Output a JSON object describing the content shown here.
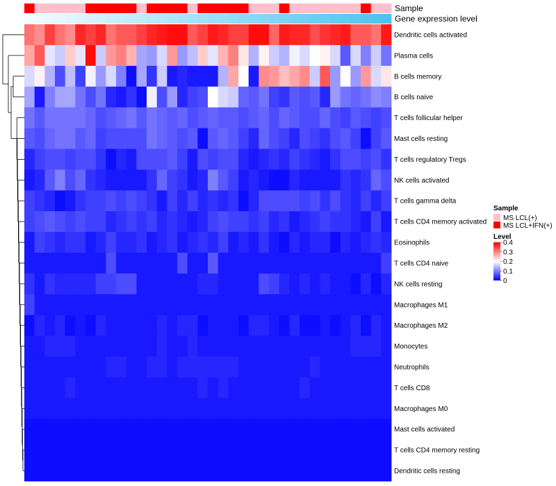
{
  "colors": {
    "low": "#0000ff",
    "mid": "#ffffff",
    "high": "#ff0000",
    "sample_lcl": "#ffc0cb",
    "sample_ifn": "#ff0000",
    "gene_low": "#f5fbff",
    "gene_high": "#4cc3ef",
    "dendrogram": "#000000"
  },
  "chart_data": {
    "type": "heatmap",
    "annotation_labels": [
      "Sample",
      "Gene expression level"
    ],
    "sample_annotation": [
      1,
      0,
      0,
      0,
      0,
      0,
      1,
      1,
      1,
      1,
      1,
      0,
      1,
      1,
      1,
      1,
      0,
      1,
      1,
      1,
      1,
      1,
      0,
      0,
      0,
      1,
      0,
      0,
      0,
      0,
      0,
      0,
      0,
      1,
      0,
      0
    ],
    "gene_expression_level": {
      "min": 0,
      "max": 1,
      "direction": "increasing"
    },
    "rows": [
      "Dendritic cells activated",
      "Plasma cells",
      "B cells memory",
      "B cells naive",
      "T cells follicular helper",
      "Mast cells resting",
      "T cells regulatory  Tregs",
      "NK cells activated",
      "T cells gamma delta",
      "T cells CD4 memory activated",
      "Eosinophils",
      "T cells CD4 naive",
      "NK cells resting",
      "Macrophages M1",
      "Macrophages M2",
      "Monocytes",
      "Neutrophils",
      "T cells CD8",
      "Macrophages M0",
      "Mast cells activated",
      "T cells CD4 memory resting",
      "Dendritic cells resting"
    ],
    "values": [
      [
        0.31,
        0.29,
        0.35,
        0.31,
        0.29,
        0.37,
        0.35,
        0.37,
        0.31,
        0.33,
        0.33,
        0.35,
        0.37,
        0.38,
        0.39,
        0.39,
        0.33,
        0.35,
        0.38,
        0.37,
        0.35,
        0.35,
        0.39,
        0.39,
        0.32,
        0.38,
        0.37,
        0.37,
        0.34,
        0.36,
        0.37,
        0.38,
        0.33,
        0.33,
        0.31,
        0.38
      ],
      [
        0.27,
        0.33,
        0.18,
        0.16,
        0.24,
        0.18,
        0.39,
        0.16,
        0.28,
        0.3,
        0.26,
        0.13,
        0.12,
        0.17,
        0.28,
        0.12,
        0.15,
        0.24,
        0.18,
        0.26,
        0.3,
        0.22,
        0.14,
        0.21,
        0.16,
        0.14,
        0.19,
        0.17,
        0.2,
        0.21,
        0.17,
        0.07,
        0.17,
        0.1,
        0.16,
        0.09
      ],
      [
        0.17,
        0.21,
        0.14,
        0.06,
        0.15,
        0.05,
        0.19,
        0.12,
        0.17,
        0.1,
        0.01,
        0.13,
        0.04,
        0.16,
        0.02,
        0.03,
        0.02,
        0.02,
        0.02,
        0.14,
        0.27,
        0.2,
        0.02,
        0.29,
        0.28,
        0.25,
        0.27,
        0.29,
        0.16,
        0.33,
        0.12,
        0.2,
        0.12,
        0.28,
        0.17,
        0.22
      ],
      [
        0.13,
        0.02,
        0.1,
        0.13,
        0.13,
        0.09,
        0.06,
        0.09,
        0.03,
        0.02,
        0.04,
        0.01,
        0.19,
        0.06,
        0.12,
        0.03,
        0.05,
        0.06,
        0.2,
        0.17,
        0.16,
        0.08,
        0.07,
        0.09,
        0.05,
        0.04,
        0.07,
        0.06,
        0.07,
        0.03,
        0.12,
        0.09,
        0.08,
        0.09,
        0.11,
        0.1
      ],
      [
        0.09,
        0.07,
        0.09,
        0.09,
        0.09,
        0.09,
        0.08,
        0.06,
        0.07,
        0.08,
        0.09,
        0.07,
        0.09,
        0.08,
        0.07,
        0.08,
        0.06,
        0.07,
        0.08,
        0.07,
        0.07,
        0.06,
        0.07,
        0.08,
        0.06,
        0.08,
        0.07,
        0.06,
        0.06,
        0.08,
        0.06,
        0.05,
        0.07,
        0.06,
        0.05,
        0.06
      ],
      [
        0.07,
        0.06,
        0.08,
        0.09,
        0.09,
        0.07,
        0.08,
        0.05,
        0.06,
        0.06,
        0.06,
        0.06,
        0.09,
        0.08,
        0.07,
        0.06,
        0.07,
        0.01,
        0.07,
        0.08,
        0.07,
        0.05,
        0.03,
        0.08,
        0.06,
        0.05,
        0.03,
        0.06,
        0.05,
        0.04,
        0.06,
        0.07,
        0.05,
        0.01,
        0.05,
        0.07
      ],
      [
        0.03,
        0.05,
        0.06,
        0.06,
        0.05,
        0.06,
        0.06,
        0.04,
        0.01,
        0.03,
        0.02,
        0.06,
        0.06,
        0.06,
        0.07,
        0.05,
        0.02,
        0.06,
        0.05,
        0.06,
        0.06,
        0.03,
        0.02,
        0.03,
        0.04,
        0.03,
        0.05,
        0.04,
        0.03,
        0.02,
        0.04,
        0.06,
        0.06,
        0.05,
        0.06,
        0.04
      ],
      [
        0.02,
        0.03,
        0.07,
        0.1,
        0.06,
        0.08,
        0.04,
        0.03,
        0.02,
        0.02,
        0.02,
        0.02,
        0.04,
        0.08,
        0.05,
        0.04,
        0.02,
        0.03,
        0.1,
        0.07,
        0.05,
        0.02,
        0.03,
        0.02,
        0.01,
        0.01,
        0.03,
        0.02,
        0.02,
        0.02,
        0.02,
        0.04,
        0.03,
        0.04,
        0.08,
        0.06
      ],
      [
        0.05,
        0.04,
        0.03,
        0.01,
        0.02,
        0.04,
        0.05,
        0.05,
        0.06,
        0.05,
        0.06,
        0.05,
        0.04,
        0.02,
        0.05,
        0.03,
        0.05,
        0.03,
        0.04,
        0.03,
        0.04,
        0.01,
        0.03,
        0.06,
        0.06,
        0.06,
        0.06,
        0.05,
        0.06,
        0.04,
        0.06,
        0.04,
        0.03,
        0.05,
        0.03,
        0.05
      ],
      [
        0.05,
        0.06,
        0.07,
        0.06,
        0.05,
        0.06,
        0.05,
        0.05,
        0.03,
        0.04,
        0.05,
        0.04,
        0.05,
        0.03,
        0.04,
        0.03,
        0.02,
        0.03,
        0.05,
        0.06,
        0.05,
        0.05,
        0.04,
        0.05,
        0.03,
        0.04,
        0.02,
        0.03,
        0.04,
        0.05,
        0.04,
        0.04,
        0.03,
        0.02,
        0.05,
        0.02
      ],
      [
        0.02,
        0.05,
        0.04,
        0.03,
        0.04,
        0.04,
        0.02,
        0.03,
        0.05,
        0.03,
        0.03,
        0.04,
        0.02,
        0.03,
        0.04,
        0.02,
        0.03,
        0.04,
        0.03,
        0.05,
        0.02,
        0.03,
        0.02,
        0.04,
        0.02,
        0.01,
        0.03,
        0.02,
        0.03,
        0.03,
        0.01,
        0.03,
        0.02,
        0.03,
        0.04,
        0.03
      ],
      [
        0.02,
        0.02,
        0.02,
        0.02,
        0.02,
        0.02,
        0.02,
        0.02,
        0.06,
        0.02,
        0.02,
        0.02,
        0.02,
        0.02,
        0.02,
        0.06,
        0.02,
        0.02,
        0.07,
        0.02,
        0.02,
        0.02,
        0.02,
        0.02,
        0.02,
        0.02,
        0.02,
        0.02,
        0.02,
        0.02,
        0.02,
        0.02,
        0.02,
        0.02,
        0.02,
        0.05
      ],
      [
        0.04,
        0.02,
        0.04,
        0.03,
        0.03,
        0.03,
        0.03,
        0.05,
        0.05,
        0.06,
        0.06,
        0.02,
        0.02,
        0.02,
        0.02,
        0.02,
        0.02,
        0.03,
        0.03,
        0.02,
        0.02,
        0.02,
        0.02,
        0.06,
        0.05,
        0.03,
        0.02,
        0.03,
        0.02,
        0.03,
        0.02,
        0.02,
        0.01,
        0.03,
        0.01,
        0.03
      ],
      [
        0.05,
        0.02,
        0.02,
        0.02,
        0.02,
        0.02,
        0.02,
        0.02,
        0.02,
        0.02,
        0.02,
        0.02,
        0.02,
        0.02,
        0.02,
        0.02,
        0.02,
        0.02,
        0.02,
        0.02,
        0.02,
        0.02,
        0.02,
        0.02,
        0.02,
        0.02,
        0.02,
        0.02,
        0.02,
        0.02,
        0.02,
        0.02,
        0.02,
        0.02,
        0.02,
        0.02
      ],
      [
        0.01,
        0.03,
        0.02,
        0.03,
        0.01,
        0.02,
        0.01,
        0.03,
        0.02,
        0.02,
        0.02,
        0.02,
        0.02,
        0.03,
        0.02,
        0.03,
        0.03,
        0.01,
        0.02,
        0.02,
        0.02,
        0.01,
        0.03,
        0.03,
        0.02,
        0.01,
        0.03,
        0.01,
        0.01,
        0.02,
        0.01,
        0.02,
        0.03,
        0.01,
        0.03,
        0.02
      ],
      [
        0.02,
        0.02,
        0.03,
        0.03,
        0.03,
        0.02,
        0.02,
        0.02,
        0.02,
        0.02,
        0.02,
        0.02,
        0.02,
        0.03,
        0.02,
        0.02,
        0.03,
        0.02,
        0.02,
        0.02,
        0.02,
        0.02,
        0.02,
        0.02,
        0.02,
        0.02,
        0.02,
        0.02,
        0.02,
        0.02,
        0.02,
        0.02,
        0.03,
        0.03,
        0.03,
        0.02
      ],
      [
        0.02,
        0.02,
        0.02,
        0.02,
        0.02,
        0.02,
        0.02,
        0.02,
        0.03,
        0.03,
        0.02,
        0.02,
        0.03,
        0.03,
        0.02,
        0.03,
        0.03,
        0.03,
        0.03,
        0.03,
        0.03,
        0.02,
        0.02,
        0.02,
        0.02,
        0.02,
        0.02,
        0.02,
        0.03,
        0.02,
        0.02,
        0.02,
        0.02,
        0.02,
        0.02,
        0.02
      ],
      [
        0.02,
        0.02,
        0.02,
        0.02,
        0.03,
        0.02,
        0.02,
        0.02,
        0.02,
        0.02,
        0.02,
        0.02,
        0.02,
        0.02,
        0.02,
        0.02,
        0.02,
        0.03,
        0.02,
        0.03,
        0.02,
        0.02,
        0.02,
        0.02,
        0.02,
        0.02,
        0.02,
        0.03,
        0.02,
        0.02,
        0.02,
        0.02,
        0.02,
        0.02,
        0.02,
        0.02
      ],
      [
        0.02,
        0.02,
        0.02,
        0.02,
        0.02,
        0.02,
        0.02,
        0.02,
        0.02,
        0.02,
        0.02,
        0.02,
        0.02,
        0.02,
        0.02,
        0.02,
        0.02,
        0.02,
        0.02,
        0.02,
        0.02,
        0.02,
        0.02,
        0.02,
        0.02,
        0.02,
        0.02,
        0.02,
        0.02,
        0.02,
        0.02,
        0.02,
        0.02,
        0.02,
        0.02,
        0.02
      ],
      [
        0.01,
        0.01,
        0.01,
        0.01,
        0.01,
        0.01,
        0.01,
        0.01,
        0.01,
        0.01,
        0.01,
        0.01,
        0.01,
        0.01,
        0.01,
        0.01,
        0.01,
        0.01,
        0.01,
        0.01,
        0.01,
        0.01,
        0.01,
        0.01,
        0.01,
        0.01,
        0.01,
        0.01,
        0.01,
        0.01,
        0.01,
        0.01,
        0.01,
        0.01,
        0.01,
        0.01
      ],
      [
        0.01,
        0.01,
        0.01,
        0.01,
        0.01,
        0.01,
        0.01,
        0.01,
        0.01,
        0.01,
        0.01,
        0.01,
        0.01,
        0.01,
        0.01,
        0.01,
        0.01,
        0.01,
        0.01,
        0.01,
        0.01,
        0.01,
        0.01,
        0.01,
        0.01,
        0.01,
        0.01,
        0.01,
        0.01,
        0.01,
        0.01,
        0.01,
        0.01,
        0.01,
        0.01,
        0.01
      ],
      [
        0.01,
        0.01,
        0.01,
        0.01,
        0.01,
        0.01,
        0.01,
        0.01,
        0.01,
        0.01,
        0.01,
        0.01,
        0.01,
        0.01,
        0.01,
        0.01,
        0.01,
        0.01,
        0.01,
        0.01,
        0.01,
        0.01,
        0.01,
        0.01,
        0.01,
        0.01,
        0.01,
        0.01,
        0.01,
        0.01,
        0.01,
        0.01,
        0.01,
        0.01,
        0.01,
        0.01
      ]
    ],
    "color_scale": {
      "min": 0,
      "mid": 0.2,
      "max": 0.4
    },
    "legend": {
      "sample_title": "Sample",
      "sample_entries": [
        "MS LCL(+)",
        "MS LCL+IFN(+)"
      ],
      "level_title": "Level",
      "level_ticks": [
        "0.4",
        "0.3",
        "0.2",
        "0.1",
        "0"
      ],
      "placement": "right"
    },
    "row_dendrogram": true
  }
}
